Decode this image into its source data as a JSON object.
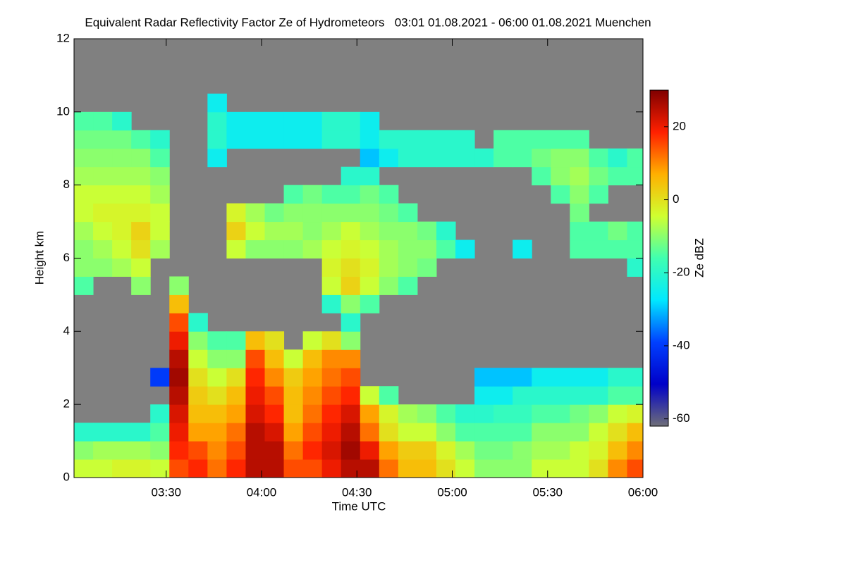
{
  "chart_data": {
    "type": "heatmap",
    "title": "Equivalent Radar Reflectivity Factor Ze of Hydrometeors   03:01 01.08.2021 - 06:00 01.08.2021 Muenchen",
    "xlabel": "Time UTC",
    "ylabel": "Height km",
    "colorbar_label": "Ze dBZ",
    "xlim": [
      "03:01",
      "06:00"
    ],
    "xticks": [
      "03:30",
      "04:00",
      "04:30",
      "05:00",
      "05:30",
      "06:00"
    ],
    "ylim": [
      0,
      12
    ],
    "yticks": [
      0,
      2,
      4,
      6,
      8,
      10,
      12
    ],
    "clim": [
      -62,
      30
    ],
    "cticks": [
      -60,
      -40,
      -20,
      0,
      20
    ],
    "background": "#808080",
    "colormap": [
      "#6e6e78",
      "#0000c8",
      "#0040ff",
      "#00e8ff",
      "#40ffb0",
      "#d0ff30",
      "#ffb000",
      "#ff2000",
      "#800000"
    ],
    "x": [
      "03:01",
      "03:07",
      "03:13",
      "03:19",
      "03:25",
      "03:31",
      "03:37",
      "03:43",
      "03:49",
      "03:55",
      "04:01",
      "04:07",
      "04:13",
      "04:19",
      "04:25",
      "04:31",
      "04:37",
      "04:43",
      "04:49",
      "04:55",
      "05:01",
      "05:07",
      "05:13",
      "05:19",
      "05:25",
      "05:31",
      "05:37",
      "05:43",
      "05:49",
      "05:55"
    ],
    "y": [
      0,
      0.5,
      1,
      1.5,
      2,
      2.5,
      3,
      3.5,
      4,
      4.5,
      5,
      5.5,
      6,
      6.5,
      7,
      7.5,
      8,
      8.5,
      9,
      9.5,
      10,
      10.5,
      11,
      11.5
    ],
    "values": [
      [
        -5,
        -10,
        -20,
        null,
        null,
        null,
        null,
        null,
        null,
        null,
        -15,
        -10,
        -10,
        -8,
        -5,
        -5,
        -8,
        -10,
        -12,
        -15,
        null,
        null,
        null,
        null
      ],
      [
        -5,
        -8,
        -20,
        null,
        null,
        null,
        null,
        null,
        null,
        null,
        null,
        -10,
        -8,
        -5,
        -3,
        -5,
        -8,
        -10,
        -12,
        -15,
        null,
        null,
        null,
        null
      ],
      [
        -3,
        -8,
        -20,
        null,
        null,
        null,
        null,
        null,
        null,
        null,
        null,
        -8,
        -5,
        -3,
        -3,
        -5,
        -8,
        -10,
        -12,
        -20,
        null,
        null,
        null,
        null
      ],
      [
        -3,
        -8,
        -20,
        null,
        null,
        null,
        null,
        null,
        null,
        null,
        -10,
        -5,
        0,
        2,
        -3,
        -5,
        -8,
        -10,
        -15,
        null,
        null,
        null,
        null,
        null
      ],
      [
        -5,
        -10,
        -15,
        -20,
        null,
        -40,
        null,
        null,
        null,
        null,
        null,
        null,
        -8,
        -5,
        -5,
        -8,
        -10,
        -15,
        -20,
        null,
        null,
        null,
        null,
        null
      ],
      [
        15,
        18,
        20,
        22,
        25,
        27,
        25,
        20,
        15,
        5,
        -10,
        null,
        null,
        null,
        null,
        null,
        null,
        null,
        null,
        null,
        null,
        null,
        null,
        null
      ],
      [
        18,
        15,
        8,
        5,
        3,
        0,
        -5,
        -10,
        -20,
        null,
        null,
        null,
        null,
        null,
        null,
        null,
        null,
        null,
        null,
        null,
        null,
        null,
        null,
        null
      ],
      [
        12,
        10,
        8,
        5,
        0,
        -5,
        -10,
        -15,
        null,
        null,
        null,
        null,
        null,
        null,
        null,
        null,
        null,
        -25,
        -20,
        -20,
        -25,
        null,
        null,
        null
      ],
      [
        18,
        15,
        12,
        8,
        5,
        0,
        -10,
        -15,
        null,
        null,
        null,
        null,
        -5,
        2,
        -3,
        null,
        null,
        null,
        -25,
        -25,
        null,
        null,
        null,
        null
      ],
      [
        25,
        25,
        25,
        22,
        20,
        18,
        15,
        5,
        null,
        null,
        null,
        null,
        -10,
        -5,
        -8,
        null,
        null,
        null,
        -25,
        -25,
        null,
        null,
        null,
        null
      ],
      [
        25,
        25,
        22,
        18,
        15,
        10,
        5,
        0,
        null,
        null,
        null,
        null,
        -10,
        -8,
        -12,
        null,
        null,
        null,
        -25,
        -25,
        null,
        null,
        null,
        null
      ],
      [
        15,
        12,
        8,
        5,
        5,
        3,
        -5,
        null,
        null,
        null,
        null,
        null,
        -10,
        -8,
        -10,
        -15,
        null,
        null,
        -25,
        -25,
        null,
        null,
        null,
        null
      ],
      [
        15,
        18,
        15,
        12,
        10,
        8,
        5,
        -5,
        null,
        null,
        null,
        null,
        -8,
        -10,
        -10,
        -12,
        null,
        null,
        -25,
        -25,
        null,
        null,
        null,
        null
      ],
      [
        20,
        22,
        20,
        18,
        15,
        12,
        10,
        0,
        null,
        -20,
        -5,
        -3,
        -5,
        -8,
        -10,
        -15,
        null,
        null,
        -20,
        -20,
        null,
        null,
        null,
        null
      ],
      [
        25,
        27,
        25,
        22,
        18,
        15,
        10,
        -10,
        -20,
        -10,
        2,
        0,
        -3,
        -5,
        -10,
        -15,
        -20,
        null,
        -20,
        -20,
        null,
        null,
        null,
        null
      ],
      [
        25,
        20,
        12,
        8,
        -5,
        null,
        null,
        null,
        null,
        -15,
        -5,
        -3,
        -5,
        -8,
        -10,
        -12,
        -20,
        -30,
        -25,
        -25,
        null,
        null,
        null,
        null
      ],
      [
        12,
        8,
        0,
        -3,
        -15,
        null,
        null,
        null,
        null,
        null,
        -10,
        -8,
        -8,
        -10,
        -12,
        -15,
        null,
        -25,
        -20,
        null,
        null,
        null,
        null,
        null
      ],
      [
        5,
        3,
        -5,
        -8,
        null,
        null,
        null,
        null,
        null,
        null,
        -15,
        -10,
        -10,
        -10,
        -15,
        null,
        null,
        -20,
        -20,
        null,
        null,
        null,
        null,
        null
      ],
      [
        5,
        3,
        -5,
        -10,
        null,
        null,
        null,
        null,
        null,
        null,
        null,
        -12,
        -10,
        -12,
        null,
        null,
        null,
        -20,
        -20,
        null,
        null,
        null,
        null,
        null
      ],
      [
        0,
        -3,
        -10,
        -15,
        null,
        null,
        null,
        null,
        null,
        null,
        null,
        null,
        -15,
        -20,
        null,
        null,
        null,
        -20,
        -20,
        null,
        null,
        null,
        null,
        null
      ],
      [
        -5,
        -8,
        -15,
        -20,
        null,
        null,
        null,
        null,
        null,
        null,
        null,
        null,
        -25,
        null,
        null,
        null,
        null,
        -20,
        -20,
        null,
        null,
        null,
        null,
        null
      ],
      [
        -10,
        -12,
        -15,
        -20,
        -25,
        -30,
        null,
        null,
        null,
        null,
        null,
        null,
        null,
        null,
        null,
        null,
        null,
        -20,
        null,
        null,
        null,
        null,
        null,
        null
      ],
      [
        -10,
        -12,
        -15,
        -18,
        -25,
        -30,
        null,
        null,
        null,
        null,
        null,
        null,
        null,
        null,
        null,
        null,
        null,
        -15,
        -15,
        null,
        null,
        null,
        null,
        null
      ],
      [
        -10,
        -10,
        -15,
        -18,
        -20,
        -30,
        null,
        null,
        null,
        null,
        null,
        null,
        -25,
        null,
        null,
        null,
        null,
        -15,
        -15,
        null,
        null,
        null,
        null,
        null
      ],
      [
        -5,
        -8,
        -10,
        -15,
        -20,
        -25,
        null,
        null,
        null,
        null,
        null,
        null,
        null,
        null,
        null,
        null,
        -15,
        -12,
        -15,
        null,
        null,
        null,
        null,
        null
      ],
      [
        -5,
        -8,
        -10,
        -15,
        -20,
        -25,
        null,
        null,
        null,
        null,
        null,
        null,
        null,
        null,
        null,
        -15,
        -10,
        -10,
        -15,
        null,
        null,
        null,
        null,
        null
      ],
      [
        -5,
        -5,
        -10,
        -12,
        -20,
        -25,
        null,
        null,
        null,
        null,
        null,
        null,
        -15,
        -15,
        -12,
        -10,
        -8,
        -10,
        -15,
        null,
        null,
        null,
        null,
        null
      ],
      [
        0,
        -3,
        -5,
        -10,
        -20,
        -25,
        null,
        null,
        null,
        null,
        null,
        null,
        -15,
        -15,
        null,
        -15,
        -12,
        -15,
        null,
        null,
        null,
        null,
        null,
        null
      ],
      [
        10,
        5,
        0,
        -5,
        -15,
        -20,
        null,
        null,
        null,
        null,
        null,
        null,
        -15,
        -12,
        null,
        null,
        -15,
        -20,
        null,
        null,
        null,
        null,
        null,
        null
      ],
      [
        15,
        10,
        5,
        -3,
        -15,
        -20,
        null,
        null,
        null,
        null,
        null,
        -20,
        -15,
        -15,
        null,
        null,
        -15,
        -15,
        null,
        null,
        null,
        null,
        null,
        null
      ]
    ]
  }
}
